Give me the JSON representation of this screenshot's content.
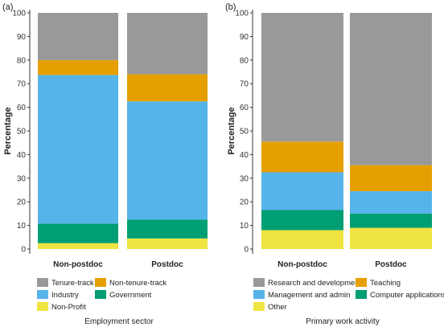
{
  "chart_data": [
    {
      "type": "bar",
      "stacked": true,
      "panel_label": "(a)",
      "ylabel": "Percentage",
      "ylim": [
        0,
        100
      ],
      "yticks": [
        0,
        10,
        20,
        30,
        40,
        50,
        60,
        70,
        80,
        90,
        100
      ],
      "categories": [
        "Non-postdoc",
        "Postdoc"
      ],
      "legend_title": "Employment sector",
      "legend_placement": "bottom",
      "grid": false,
      "series": [
        {
          "name": "Non-Profit",
          "color": "#f0e442",
          "values": [
            2.5,
            4.5
          ]
        },
        {
          "name": "Government",
          "color": "#009e73",
          "values": [
            8.2,
            8.0
          ]
        },
        {
          "name": "Industry",
          "color": "#56b4e9",
          "values": [
            63.0,
            50.0
          ]
        },
        {
          "name": "Non-tenure-track",
          "color": "#e69f00",
          "values": [
            6.3,
            11.5
          ]
        },
        {
          "name": "Tenure-track",
          "color": "#999999",
          "values": [
            20.0,
            26.0
          ]
        }
      ],
      "legend_order": [
        "Tenure-track",
        "Non-tenure-track",
        "Industry",
        "Government",
        "Non-Profit"
      ]
    },
    {
      "type": "bar",
      "stacked": true,
      "panel_label": "(b)",
      "ylabel": "Percentage",
      "ylim": [
        0,
        100
      ],
      "yticks": [
        0,
        10,
        20,
        30,
        40,
        50,
        60,
        70,
        80,
        90,
        100
      ],
      "categories": [
        "Non-postdoc",
        "Postdoc"
      ],
      "legend_title": "Primary work activity",
      "legend_placement": "bottom",
      "grid": false,
      "series": [
        {
          "name": "Other",
          "color": "#f0e442",
          "values": [
            8.0,
            9.0
          ]
        },
        {
          "name": "Computer applications",
          "color": "#009e73",
          "values": [
            8.5,
            6.0
          ]
        },
        {
          "name": "Management and admin",
          "color": "#56b4e9",
          "values": [
            16.0,
            9.5
          ]
        },
        {
          "name": "Teaching",
          "color": "#e69f00",
          "values": [
            13.0,
            11.0
          ]
        },
        {
          "name": "Research and development",
          "color": "#999999",
          "values": [
            54.5,
            64.5
          ]
        }
      ],
      "legend_order": [
        "Research and development",
        "Teaching",
        "Management and admin",
        "Computer applications",
        "Other"
      ]
    }
  ]
}
